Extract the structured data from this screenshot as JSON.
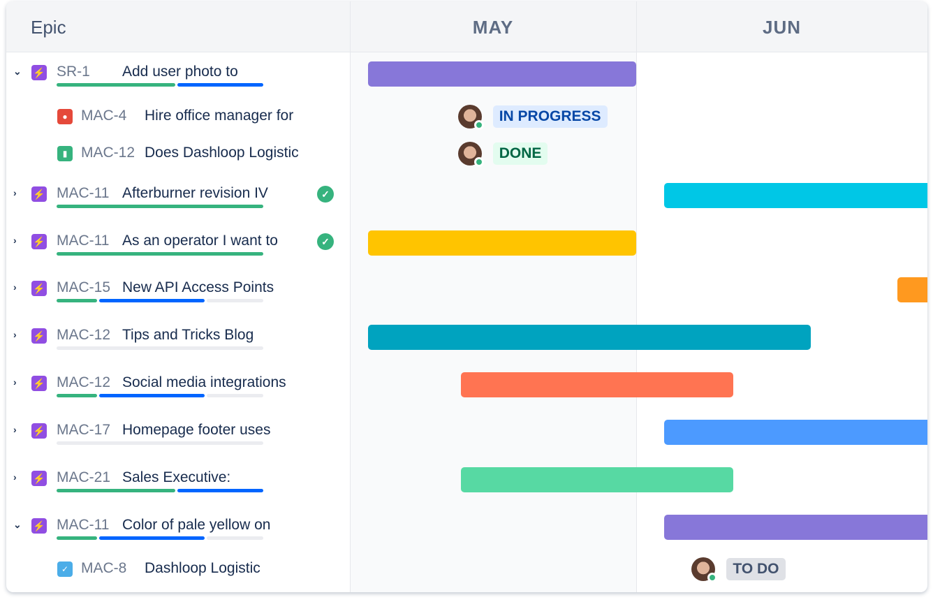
{
  "header": {
    "epic_label": "Epic",
    "months": [
      "MAY",
      "JUN"
    ]
  },
  "colors": {
    "done": "#36b37e",
    "in_progress": "#0065ff",
    "todo": "#ebecf0",
    "epic_icon": "#904ee2"
  },
  "rows": [
    {
      "type": "epic",
      "expanded": true,
      "key": "SR-1",
      "title": "Add user photo to",
      "progress": [
        0.58,
        0.42,
        0
      ],
      "bar": {
        "start": "May 3",
        "end": "May 31",
        "color": "#8777d9"
      }
    },
    {
      "type": "child",
      "icon": "bug-icon",
      "icon_color": "#e5493a",
      "key": "MAC-4",
      "title": "Hire office manager for",
      "status": "IN PROGRESS",
      "status_bg": "#deebff",
      "status_fg": "#0747a6",
      "assignee_day": "May 13"
    },
    {
      "type": "child",
      "icon": "story-icon",
      "icon_color": "#36b37e",
      "key": "MAC-12",
      "title": "Does Dashloop Logistic",
      "status": "DONE",
      "status_bg": "#e3fcef",
      "status_fg": "#006644",
      "assignee_day": "May 13"
    },
    {
      "type": "epic",
      "expanded": false,
      "key": "MAC-11",
      "title": "Afterburner revision IV",
      "done": true,
      "progress": [
        1,
        0,
        0
      ],
      "bar": {
        "start": "Jun 2",
        "end": "Jun 30",
        "color": "#00c7e6"
      }
    },
    {
      "type": "epic",
      "expanded": false,
      "key": "MAC-11",
      "title": "As an operator I want to",
      "done": true,
      "progress": [
        1,
        0,
        0
      ],
      "bar": {
        "start": "May 3",
        "end": "May 31",
        "color": "#ffc400"
      }
    },
    {
      "type": "epic",
      "expanded": false,
      "key": "MAC-15",
      "title": "New API Access Points",
      "progress": [
        0.2,
        0.52,
        0.28
      ],
      "bar": {
        "start": "Jun 26",
        "end": "Jun 30",
        "color": "#ff991f"
      }
    },
    {
      "type": "epic",
      "expanded": false,
      "key": "MAC-12",
      "title": "Tips and Tricks Blog",
      "progress": [
        0,
        0,
        1
      ],
      "bar": {
        "start": "May 3",
        "end": "Jun 18",
        "color": "#00a3bf"
      }
    },
    {
      "type": "epic",
      "expanded": false,
      "key": "MAC-12",
      "title": "Social media integrations",
      "progress": [
        0.2,
        0.52,
        0.28
      ],
      "bar": {
        "start": "May 13",
        "end": "Jun 10",
        "color": "#ff7452"
      }
    },
    {
      "type": "epic",
      "expanded": false,
      "key": "MAC-17",
      "title": "Homepage footer uses",
      "progress": [
        0,
        0,
        1
      ],
      "bar": {
        "start": "Jun 2",
        "end": "Jun 30",
        "color": "#4c9aff"
      }
    },
    {
      "type": "epic",
      "expanded": false,
      "key": "MAC-21",
      "title": "Sales Executive:",
      "progress": [
        0.58,
        0.42,
        0
      ],
      "bar": {
        "start": "May 13",
        "end": "Jun 10",
        "color": "#57d9a3"
      }
    },
    {
      "type": "epic",
      "expanded": true,
      "key": "MAC-11",
      "title": "Color of pale yellow on",
      "progress": [
        0.2,
        0.52,
        0.28
      ],
      "bar": {
        "start": "Jun 2",
        "end": "Jun 30",
        "color": "#8777d9"
      }
    },
    {
      "type": "child",
      "icon": "task-icon",
      "icon_color": "#4bade8",
      "key": "MAC-8",
      "title": "Dashloop Logistic",
      "status": "TO DO",
      "status_bg": "#dfe1e6",
      "status_fg": "#42526e",
      "assignee_day": "Jun 7"
    }
  ]
}
